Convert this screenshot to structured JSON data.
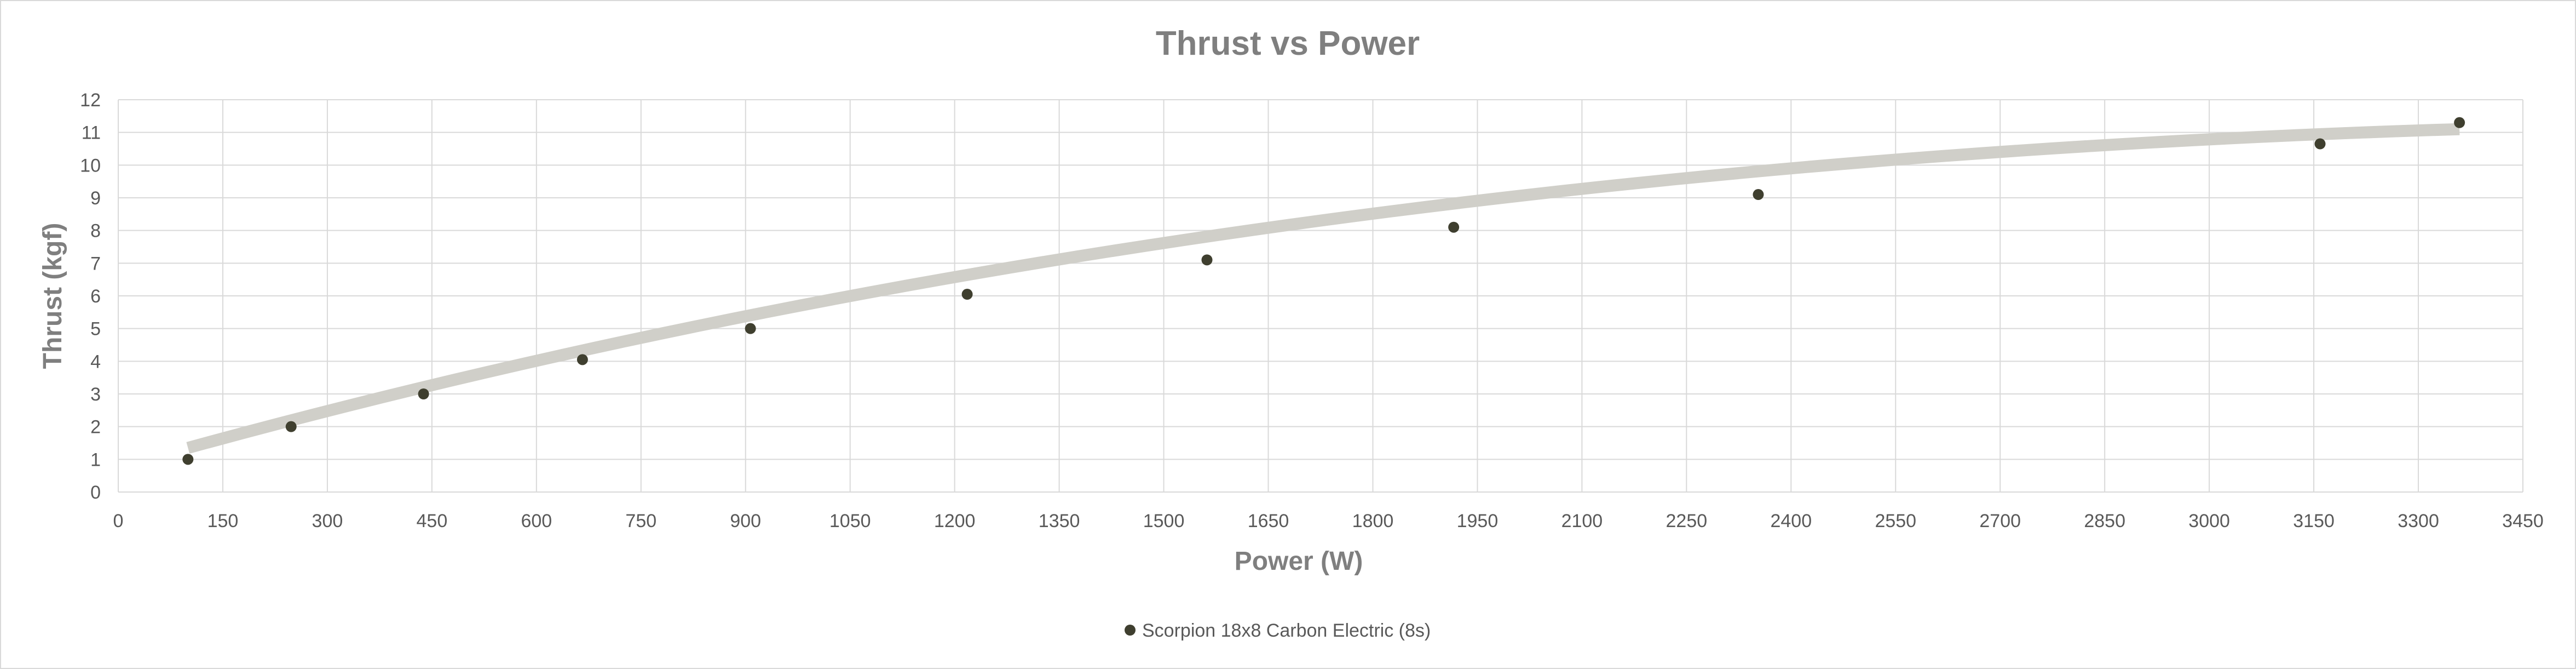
{
  "chart_data": {
    "type": "scatter",
    "title": "Thrust vs Power",
    "xlabel": "Power (W)",
    "ylabel": "Thrust (kgf)",
    "xlim": [
      0,
      3450
    ],
    "ylim": [
      0,
      12
    ],
    "x_ticks": [
      0,
      150,
      300,
      450,
      600,
      750,
      900,
      1050,
      1200,
      1350,
      1500,
      1650,
      1800,
      1950,
      2100,
      2250,
      2400,
      2550,
      2700,
      2850,
      3000,
      3150,
      3300,
      3450
    ],
    "y_ticks": [
      0,
      1,
      2,
      3,
      4,
      5,
      6,
      7,
      8,
      9,
      10,
      11,
      12
    ],
    "grid": true,
    "legend_position": "bottom",
    "series": [
      {
        "name": "Scorpion 18x8  Carbon Electric (8s)",
        "marker_color": "#3f3f2f",
        "x": [
          100,
          248,
          438,
          666,
          907,
          1218,
          1562,
          1916,
          2353,
          3159,
          3359
        ],
        "y": [
          1.0,
          2.0,
          3.0,
          4.05,
          5.0,
          6.05,
          7.1,
          8.1,
          9.1,
          10.65,
          11.3
        ]
      }
    ],
    "trendline": {
      "color": "#d0cfc9",
      "x": [
        100,
        3359
      ],
      "y_start": 1.35,
      "y_end": 11.1
    }
  }
}
